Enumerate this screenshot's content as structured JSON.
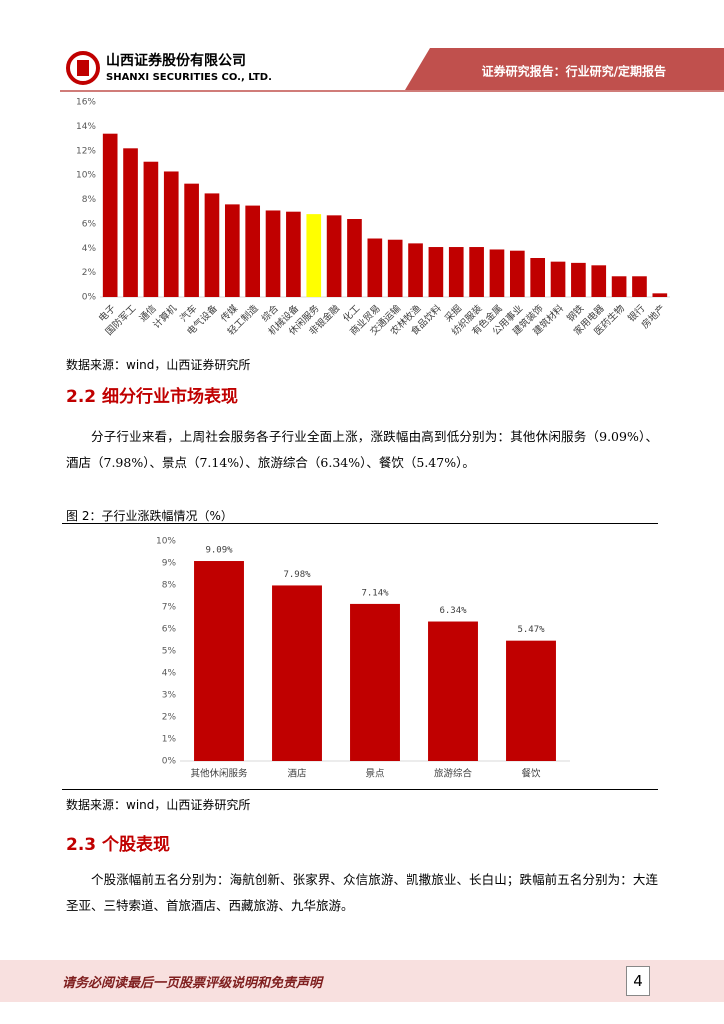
{
  "header": {
    "company": "山西证券股份有限公司",
    "company_en": "SHANXI SECURITIES CO., LTD.",
    "report_type": "证券研究报告：行业研究/定期报告"
  },
  "chart_data": [
    {
      "type": "bar",
      "categories": [
        "电子",
        "国防军工",
        "通信",
        "计算机",
        "汽车",
        "电气设备",
        "传媒",
        "轻工制造",
        "综合",
        "机械设备",
        "休闲服务",
        "非银金融",
        "化工",
        "商业贸易",
        "交通运输",
        "农林牧渔",
        "食品饮料",
        "采掘",
        "纺织服装",
        "有色金属",
        "公用事业",
        "建筑装饰",
        "建筑材料",
        "钢铁",
        "家用电器",
        "医药生物",
        "银行",
        "房地产"
      ],
      "values": [
        13.4,
        12.2,
        11.1,
        10.3,
        9.3,
        8.5,
        7.6,
        7.5,
        7.1,
        7.0,
        6.8,
        6.7,
        6.4,
        4.8,
        4.7,
        4.4,
        4.1,
        4.1,
        4.1,
        3.9,
        3.8,
        3.2,
        2.9,
        2.8,
        2.6,
        1.7,
        1.7,
        0.3
      ],
      "colors": [
        "#c00000",
        "#c00000",
        "#c00000",
        "#c00000",
        "#c00000",
        "#c00000",
        "#c00000",
        "#c00000",
        "#c00000",
        "#c00000",
        "#ffff00",
        "#c00000",
        "#c00000",
        "#c00000",
        "#c00000",
        "#c00000",
        "#c00000",
        "#c00000",
        "#c00000",
        "#c00000",
        "#c00000",
        "#c00000",
        "#c00000",
        "#c00000",
        "#c00000",
        "#c00000",
        "#c00000",
        "#c00000"
      ],
      "ylim": [
        0,
        16
      ],
      "yticks": [
        {
          "value": 0,
          "label": "0%"
        },
        {
          "value": 2,
          "label": "2%"
        },
        {
          "value": 4,
          "label": "4%"
        },
        {
          "value": 6,
          "label": "6%"
        },
        {
          "value": 8,
          "label": "8%"
        },
        {
          "value": 10,
          "label": "10%"
        },
        {
          "value": 12,
          "label": "12%"
        },
        {
          "value": 14,
          "label": "14%"
        },
        {
          "value": 16,
          "label": "16%"
        }
      ],
      "grid": false,
      "source": "数据来源：wind，山西证券研究所"
    },
    {
      "type": "bar",
      "title": "图 2：子行业涨跌幅情况（%）",
      "categories": [
        "其他休闲服务",
        "酒店",
        "景点",
        "旅游综合",
        "餐饮"
      ],
      "values": [
        9.09,
        7.98,
        7.14,
        6.34,
        5.47
      ],
      "value_labels": [
        "9.09%",
        "7.98%",
        "7.14%",
        "6.34%",
        "5.47%"
      ],
      "color": "#c00000",
      "ylim": [
        0,
        10
      ],
      "yticks": [
        {
          "value": 0,
          "label": "0%"
        },
        {
          "value": 1,
          "label": "1%"
        },
        {
          "value": 2,
          "label": "2%"
        },
        {
          "value": 3,
          "label": "3%"
        },
        {
          "value": 4,
          "label": "4%"
        },
        {
          "value": 5,
          "label": "5%"
        },
        {
          "value": 6,
          "label": "6%"
        },
        {
          "value": 7,
          "label": "7%"
        },
        {
          "value": 8,
          "label": "8%"
        },
        {
          "value": 9,
          "label": "9%"
        },
        {
          "value": 10,
          "label": "10%"
        }
      ],
      "grid": false,
      "source": "数据来源：wind，山西证券研究所"
    }
  ],
  "sections": [
    {
      "heading": "2.2 细分行业市场表现",
      "paragraph": "分子行业来看，上周社会服务各子行业全面上涨，涨跌幅由高到低分别为：其他休闲服务（9.09%）、酒店（7.98%）、景点（7.14%）、旅游综合（6.34%）、餐饮（5.47%）。"
    },
    {
      "heading": "2.3 个股表现",
      "paragraph": "个股涨幅前五名分别为：海航创新、张家界、众信旅游、凯撒旅业、长白山；跌幅前五名分别为：大连圣亚、三特索道、首旅酒店、西藏旅游、九华旅游。"
    }
  ],
  "footer": {
    "disclaimer": "请务必阅读最后一页股票评级说明和免责声明",
    "page": "4"
  }
}
